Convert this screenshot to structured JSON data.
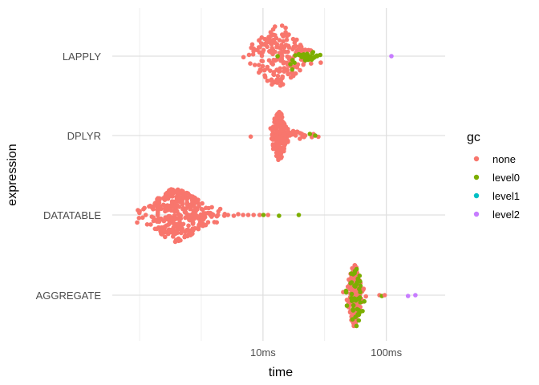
{
  "chart_data": {
    "type": "scatter",
    "subtype": "beeswarm",
    "xlabel": "time",
    "ylabel": "expression",
    "x_scale": "log10",
    "x_unit": "ms",
    "xlim": [
      0.6,
      300
    ],
    "x_ticks": [
      {
        "value": 10,
        "label": "10ms"
      },
      {
        "value": 100,
        "label": "100ms"
      }
    ],
    "x_minor_gridlines": [
      1,
      3.16,
      31.6
    ],
    "categories": [
      "AGGREGATE",
      "DATATABLE",
      "DPLYR",
      "LAPPLY"
    ],
    "grid": true,
    "legend": {
      "title": "gc",
      "position": "right",
      "entries": [
        {
          "label": "none",
          "color": "#F8766D"
        },
        {
          "label": "level0",
          "color": "#7CAE00"
        },
        {
          "label": "level1",
          "color": "#00BFC4"
        },
        {
          "label": "level2",
          "color": "#C77CFF"
        }
      ]
    },
    "series": [
      {
        "category": "LAPPLY",
        "clusters": [
          {
            "gc": "none",
            "center_ms": 13.3,
            "spread": 0.11,
            "height": 0.8,
            "count": 170
          },
          {
            "gc": "none",
            "center_ms": 18,
            "spread": 0.08,
            "height": 0.3,
            "count": 25
          },
          {
            "gc": "level0",
            "center_ms": 17.5,
            "spread": 0.06,
            "height": 0.35,
            "count": 12
          },
          {
            "gc": "level0",
            "center_ms": 24.5,
            "spread": 0.04,
            "height": 0.12,
            "count": 18
          }
        ],
        "points": [
          {
            "gc": "level0",
            "x": 27.5,
            "dy": 0.0
          },
          {
            "gc": "level0",
            "x": 22,
            "dy": 0.05
          },
          {
            "gc": "level2",
            "x": 110,
            "dy": 0.0
          }
        ]
      },
      {
        "category": "DPLYR",
        "clusters": [
          {
            "gc": "none",
            "center_ms": 13.5,
            "spread": 0.035,
            "height": 0.62,
            "count": 150
          },
          {
            "gc": "none",
            "center_ms": 17,
            "spread": 0.09,
            "height": 0.12,
            "count": 35
          }
        ],
        "points": [
          {
            "gc": "level0",
            "x": 24,
            "dy": -0.02
          },
          {
            "gc": "level0",
            "x": 26.5,
            "dy": 0.0
          },
          {
            "gc": "none",
            "x": 22,
            "dy": 0.0
          }
        ]
      },
      {
        "category": "DATATABLE",
        "clusters": [
          {
            "gc": "none",
            "center_ms": 2.0,
            "spread": 0.13,
            "height": 0.68,
            "count": 320
          },
          {
            "gc": "none",
            "center_ms": 3.6,
            "spread": 0.09,
            "height": 0.06,
            "count": 20
          }
        ],
        "points": [
          {
            "gc": "none",
            "x": 1.12,
            "dy": 0.0
          },
          {
            "gc": "none",
            "x": 5.2,
            "dy": 0.0
          },
          {
            "gc": "none",
            "x": 5.8,
            "dy": 0.01
          },
          {
            "gc": "none",
            "x": 6.3,
            "dy": -0.01
          },
          {
            "gc": "none",
            "x": 6.9,
            "dy": 0.0
          },
          {
            "gc": "none",
            "x": 7.6,
            "dy": 0.0
          },
          {
            "gc": "none",
            "x": 8.4,
            "dy": 0.0
          },
          {
            "gc": "none",
            "x": 9.4,
            "dy": 0.0
          },
          {
            "gc": "level0",
            "x": 10.1,
            "dy": 0.0
          },
          {
            "gc": "none",
            "x": 11.0,
            "dy": 0.0
          },
          {
            "gc": "level0",
            "x": 13.5,
            "dy": 0.01
          },
          {
            "gc": "level0",
            "x": 19.5,
            "dy": 0.0
          }
        ]
      },
      {
        "category": "AGGREGATE",
        "clusters": [
          {
            "gc": "none",
            "center_ms": 55,
            "spread": 0.03,
            "height": 0.8,
            "count": 210
          },
          {
            "gc": "level0",
            "center_ms": 56,
            "spread": 0.04,
            "height": 0.82,
            "count": 45
          }
        ],
        "points": [
          {
            "gc": "none",
            "x": 88,
            "dy": 0.0
          },
          {
            "gc": "level0",
            "x": 92,
            "dy": 0.01
          },
          {
            "gc": "none",
            "x": 97,
            "dy": 0.0
          },
          {
            "gc": "level2",
            "x": 150,
            "dy": 0.01
          },
          {
            "gc": "level2",
            "x": 172,
            "dy": 0.0
          }
        ]
      }
    ]
  }
}
